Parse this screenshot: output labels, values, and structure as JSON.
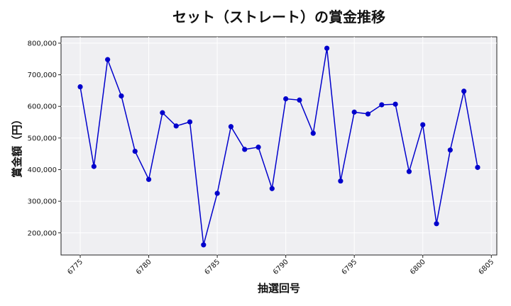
{
  "chart_data": {
    "type": "line",
    "title": "セット（ストレート）の賞金推移",
    "xlabel": "抽選回号",
    "ylabel": "賞金額（円）",
    "xlim": [
      6773.6,
      6805.4
    ],
    "ylim": [
      130000,
      820000
    ],
    "x_ticks": [
      6775,
      6780,
      6785,
      6790,
      6795,
      6800,
      6805
    ],
    "y_ticks": [
      200000,
      300000,
      400000,
      500000,
      600000,
      700000,
      800000
    ],
    "y_tick_labels": [
      "200,000",
      "300,000",
      "400,000",
      "500,000",
      "600,000",
      "700,000",
      "800,000"
    ],
    "grid": true,
    "line_color": "#0000cc",
    "plot_background": "#efeff2",
    "series": [
      {
        "x": [
          6775,
          6776,
          6777,
          6778,
          6779,
          6780,
          6781,
          6782,
          6783,
          6784,
          6785,
          6786,
          6787,
          6788,
          6789,
          6790,
          6791,
          6792,
          6793,
          6794,
          6795,
          6796,
          6797,
          6798,
          6799,
          6800,
          6801,
          6802,
          6803,
          6804
        ],
        "values": [
          662000,
          410000,
          748000,
          633000,
          458000,
          369000,
          580000,
          538000,
          551000,
          162000,
          325000,
          536000,
          464000,
          471000,
          340000,
          624000,
          620000,
          515000,
          784000,
          364000,
          582000,
          576000,
          605000,
          607000,
          394000,
          542000,
          229000,
          462000,
          648000,
          407000
        ]
      }
    ]
  }
}
